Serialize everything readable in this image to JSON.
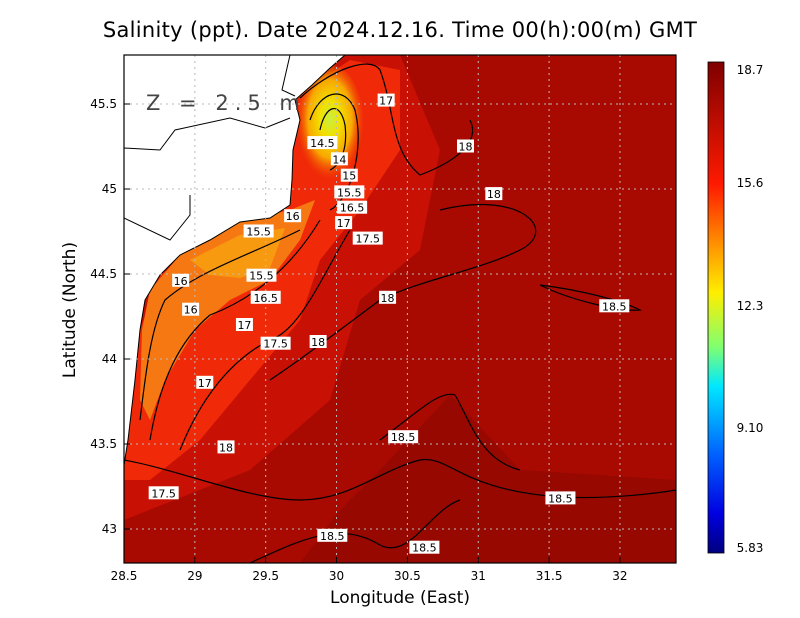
{
  "title": "Salinity (ppt). Date 2024.12.16. Time 00(h):00(m) GMT",
  "depth_label": "Z = 2.5 m",
  "chart_data": {
    "type": "heatmap",
    "variable": "Salinity (ppt)",
    "xlabel": "Longitude (East)",
    "ylabel": "Latitude (North)",
    "xlim": [
      28.5,
      32.4
    ],
    "ylim": [
      42.8,
      45.79
    ],
    "xticks": [
      "28.5",
      "29",
      "29.5",
      "30",
      "30.5",
      "31",
      "31.5",
      "32"
    ],
    "xtick_values": [
      28.5,
      29,
      29.5,
      30,
      30.5,
      31,
      31.5,
      32
    ],
    "yticks": [
      "43",
      "43.5",
      "44",
      "44.5",
      "45",
      "45.5"
    ],
    "ytick_values": [
      43,
      43.5,
      44,
      44.5,
      45,
      45.5
    ],
    "grid": true,
    "colorbar": {
      "ticks": [
        "18.7",
        "15.6",
        "12.3",
        "9.10",
        "5.83"
      ],
      "min": 5.83,
      "max": 18.7,
      "colormap": "jet"
    },
    "contour_labels": [
      {
        "text": "17",
        "lon": 30.35,
        "lat": 45.52
      },
      {
        "text": "14.5",
        "lon": 29.9,
        "lat": 45.27
      },
      {
        "text": "14",
        "lon": 30.02,
        "lat": 45.21
      },
      {
        "text": "15",
        "lon": 30.09,
        "lat": 45.09
      },
      {
        "text": "15.5",
        "lon": 30.09,
        "lat": 44.98
      },
      {
        "text": "16.5",
        "lon": 30.11,
        "lat": 44.89
      },
      {
        "text": "17",
        "lon": 30.05,
        "lat": 44.87
      },
      {
        "text": "16",
        "lon": 29.69,
        "lat": 44.84
      },
      {
        "text": "18",
        "lon": 30.91,
        "lat": 45.25
      },
      {
        "text": "18",
        "lon": 31.11,
        "lat": 44.97
      },
      {
        "text": "17.5",
        "lon": 30.22,
        "lat": 44.72
      },
      {
        "text": "15.5",
        "lon": 29.45,
        "lat": 44.75
      },
      {
        "text": "15.5",
        "lon": 29.47,
        "lat": 44.49
      },
      {
        "text": "16.5",
        "lon": 29.5,
        "lat": 44.36
      },
      {
        "text": "16",
        "lon": 28.9,
        "lat": 44.46
      },
      {
        "text": "16",
        "lon": 28.97,
        "lat": 44.29
      },
      {
        "text": "17",
        "lon": 29.35,
        "lat": 44.2
      },
      {
        "text": "17.5",
        "lon": 29.57,
        "lat": 44.09
      },
      {
        "text": "18",
        "lon": 29.87,
        "lat": 44.1
      },
      {
        "text": "18",
        "lon": 30.36,
        "lat": 44.36
      },
      {
        "text": "18.5",
        "lon": 31.96,
        "lat": 44.31
      },
      {
        "text": "17",
        "lon": 29.07,
        "lat": 43.86
      },
      {
        "text": "18.5",
        "lon": 30.47,
        "lat": 43.54
      },
      {
        "text": "18",
        "lon": 29.22,
        "lat": 43.48
      },
      {
        "text": "17.5",
        "lon": 28.78,
        "lat": 43.21
      },
      {
        "text": "18.5",
        "lon": 31.58,
        "lat": 43.18
      },
      {
        "text": "18.5",
        "lon": 29.97,
        "lat": 42.96
      },
      {
        "text": "18.5",
        "lon": 30.62,
        "lat": 42.89
      }
    ]
  }
}
